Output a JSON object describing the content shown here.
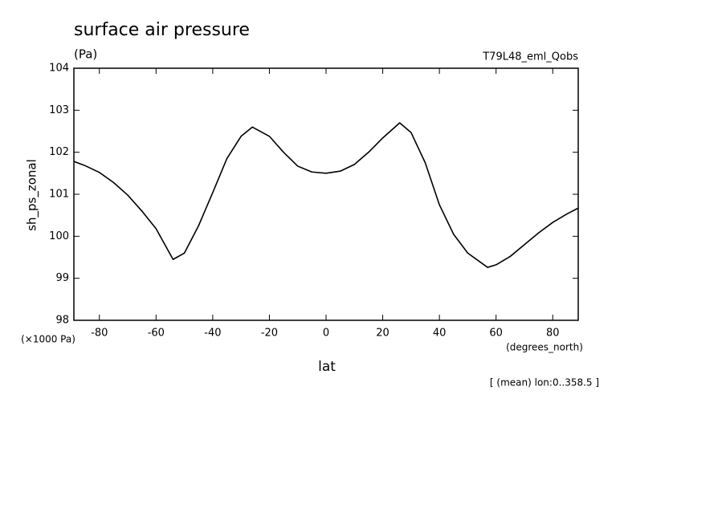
{
  "chart_data": {
    "type": "line",
    "title": "surface air pressure",
    "subtitle": "(Pa)",
    "experiment": "T79L48_eml_Qobs",
    "y_label": "sh_ps_zonal",
    "y_unit": "(×1000 Pa)",
    "x_label": "lat",
    "x_unit": "(degrees_north)",
    "note": "[ (mean) lon:0..358.5 ]",
    "x": [
      -89,
      -85,
      -80,
      -75,
      -70,
      -65,
      -60,
      -54,
      -50,
      -45,
      -40,
      -35,
      -30,
      -26,
      -20,
      -15,
      -10,
      -5,
      0,
      5,
      10,
      15,
      20,
      26,
      30,
      35,
      40,
      45,
      50,
      57,
      60,
      65,
      70,
      75,
      80,
      85,
      89
    ],
    "series": [
      {
        "name": "sh_ps_zonal",
        "color": "#000000",
        "values": [
          101.78,
          101.68,
          101.52,
          101.28,
          100.98,
          100.6,
          100.18,
          99.45,
          99.6,
          100.25,
          101.04,
          101.85,
          102.38,
          102.6,
          102.38,
          102.0,
          101.67,
          101.53,
          101.5,
          101.55,
          101.71,
          102.0,
          102.34,
          102.7,
          102.47,
          101.75,
          100.75,
          100.05,
          99.6,
          99.26,
          99.32,
          99.52,
          99.8,
          100.08,
          100.33,
          100.53,
          100.67
        ]
      }
    ],
    "xlim": [
      -89,
      89
    ],
    "ylim": [
      98,
      104
    ],
    "xticks": [
      -80,
      -60,
      -40,
      -20,
      0,
      20,
      40,
      60,
      80
    ],
    "yticks": [
      98,
      99,
      100,
      101,
      102,
      103,
      104
    ]
  }
}
